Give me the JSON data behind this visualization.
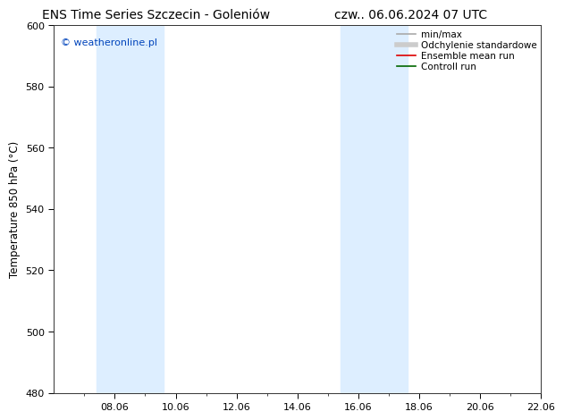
{
  "title_left": "ENS Time Series Szczecin - Goleniów",
  "title_right": "czw.. 06.06.2024 07 UTC",
  "ylabel": "Temperature 850 hPa (°C)",
  "ylim": [
    480,
    600
  ],
  "yticks": [
    480,
    500,
    520,
    540,
    560,
    580,
    600
  ],
  "xtick_labels": [
    "08.06",
    "10.06",
    "12.06",
    "14.06",
    "16.06",
    "18.06",
    "20.06",
    "22.06"
  ],
  "xtick_positions": [
    2,
    4,
    6,
    8,
    10,
    12,
    14,
    16
  ],
  "xlim": [
    0,
    16
  ],
  "shaded_bands": [
    {
      "x_start": 1.4,
      "x_end": 3.6,
      "color": "#ddeeff"
    },
    {
      "x_start": 9.4,
      "x_end": 11.6,
      "color": "#ddeeff"
    }
  ],
  "watermark_text": "© weatheronline.pl",
  "watermark_color": "#0044bb",
  "legend_items": [
    {
      "label": "min/max",
      "color": "#aaaaaa",
      "linewidth": 1.2,
      "style": "solid"
    },
    {
      "label": "Odchylenie standardowe",
      "color": "#cccccc",
      "linewidth": 4,
      "style": "solid"
    },
    {
      "label": "Ensemble mean run",
      "color": "#dd0000",
      "linewidth": 1.2,
      "style": "solid"
    },
    {
      "label": "Controll run",
      "color": "#006600",
      "linewidth": 1.2,
      "style": "solid"
    }
  ],
  "bg_color": "#ffffff",
  "plot_bg_color": "#ffffff",
  "title_fontsize": 10,
  "ylabel_fontsize": 8.5,
  "tick_fontsize": 8,
  "watermark_fontsize": 8,
  "legend_fontsize": 7.5
}
